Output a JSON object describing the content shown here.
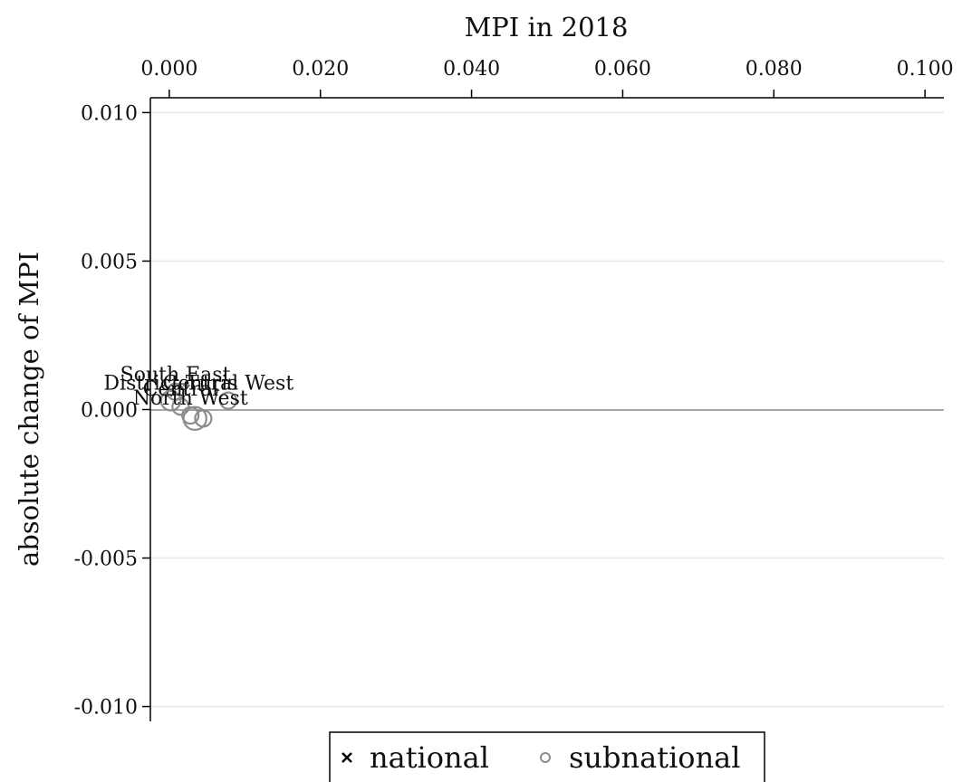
{
  "chart_data": {
    "type": "scatter",
    "title": "",
    "xlabel": "MPI in 2018",
    "ylabel": "absolute change of MPI",
    "x_axis_position": "top",
    "xlim": [
      -0.0025,
      0.1025
    ],
    "ylim": [
      -0.0105,
      0.0105
    ],
    "x_ticks": [
      0.0,
      0.02,
      0.04,
      0.06,
      0.08,
      0.1
    ],
    "x_tick_labels": [
      "0.000",
      "0.020",
      "0.040",
      "0.060",
      "0.080",
      "0.100"
    ],
    "y_ticks": [
      0.01,
      0.005,
      0.0,
      -0.005,
      -0.01
    ],
    "y_tick_labels": [
      "0.010",
      "0.005",
      "0.000",
      "-0.005",
      "-0.010"
    ],
    "grid": "horizontal",
    "reference_line_y": 0,
    "legend": {
      "placement": "bottom",
      "entries": [
        {
          "label": "national",
          "marker": "cross"
        },
        {
          "label": "subnational",
          "marker": "circle"
        }
      ]
    },
    "colors": {
      "subnational": "#8c8c8c",
      "national": "#000000",
      "zero_line": "#8a8a8a"
    },
    "series": [
      {
        "name": "subnational",
        "points": [
          {
            "label": "South East",
            "x": 0.0008,
            "y": 0.0006,
            "size": 1
          },
          {
            "label": "District Turis",
            "x": 0.0002,
            "y": 0.0003,
            "size": 1.2
          },
          {
            "label": "Central",
            "x": 0.0015,
            "y": 0.0001,
            "size": 1
          },
          {
            "label": "Central West",
            "x": 0.0078,
            "y": 0.0003,
            "size": 1
          },
          {
            "label": "North West",
            "x": 0.0028,
            "y": -0.0002,
            "size": 1
          },
          {
            "label": "",
            "x": 0.0034,
            "y": -0.0003,
            "size": 1.4
          },
          {
            "label": "",
            "x": 0.0045,
            "y": -0.0003,
            "size": 1
          }
        ]
      }
    ]
  }
}
